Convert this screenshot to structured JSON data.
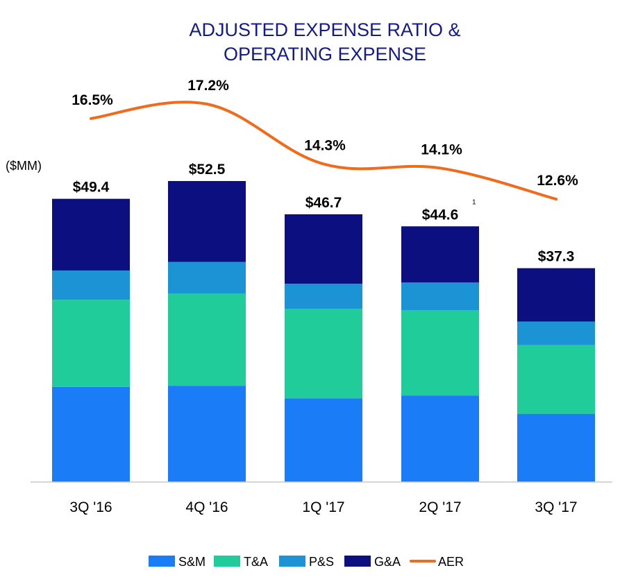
{
  "chart_data": {
    "type": "bar",
    "stacked": true,
    "title_lines": [
      "ADJUSTED EXPENSE RATIO &",
      "OPERATING EXPENSE"
    ],
    "unit_label": "($MM)",
    "categories": [
      "3Q '16",
      "4Q '16",
      "1Q '17",
      "2Q '17",
      "3Q '17"
    ],
    "totals": [
      49.4,
      52.5,
      46.7,
      44.6,
      37.3
    ],
    "total_labels": [
      "$49.4",
      "$52.5",
      "$46.7",
      "$44.6",
      "$37.3"
    ],
    "footnote_index": 3,
    "footnote_mark": "1",
    "series": [
      {
        "name": "S&M",
        "color": "#1a7cf7",
        "values": [
          16.6,
          16.8,
          14.6,
          15.1,
          11.9
        ]
      },
      {
        "name": "T&A",
        "color": "#1fcc9a",
        "values": [
          15.2,
          16.1,
          15.6,
          14.9,
          12.0
        ]
      },
      {
        "name": "P&S",
        "color": "#1b93d5",
        "values": [
          5.1,
          5.5,
          4.4,
          4.8,
          4.1
        ]
      },
      {
        "name": "G&A",
        "color": "#0b0f7f",
        "values": [
          12.5,
          14.1,
          12.1,
          9.8,
          9.3
        ]
      }
    ],
    "line_series": {
      "name": "AER",
      "color": "#f26a1b",
      "values": [
        16.5,
        17.2,
        14.3,
        14.1,
        12.6
      ],
      "labels": [
        "16.5%",
        "17.2%",
        "14.3%",
        "14.1%",
        "12.6%"
      ]
    },
    "ylim": [
      0,
      52.5
    ],
    "legend_position": "bottom",
    "grid": false
  }
}
